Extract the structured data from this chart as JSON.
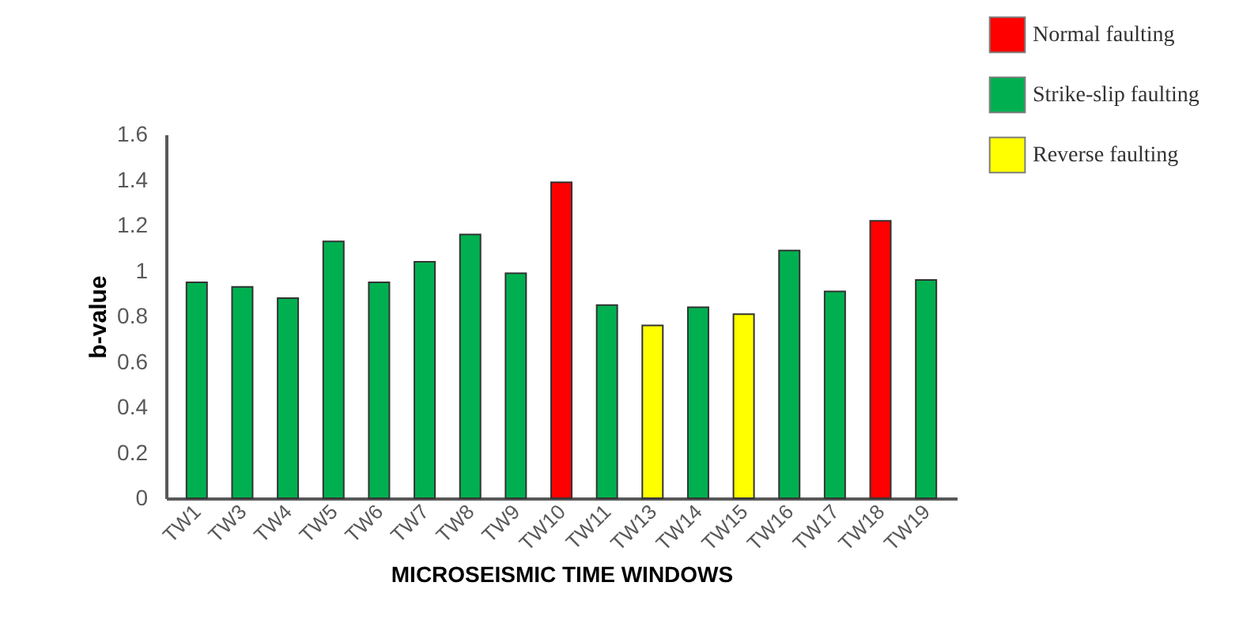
{
  "chart_data": {
    "type": "bar",
    "categories": [
      "TW1",
      "TW3",
      "TW4",
      "TW5",
      "TW6",
      "TW7",
      "TW8",
      "TW9",
      "TW10",
      "TW11",
      "TW13",
      "TW14",
      "TW15",
      "TW16",
      "TW17",
      "TW18",
      "TW19"
    ],
    "series": [
      {
        "name": "Normal faulting",
        "color": "#ff0000",
        "values": [
          null,
          null,
          null,
          null,
          null,
          null,
          null,
          null,
          1.39,
          null,
          null,
          null,
          null,
          null,
          null,
          1.22,
          null
        ]
      },
      {
        "name": "Strike-slip faulting",
        "color": "#00b050",
        "values": [
          0.95,
          0.93,
          0.88,
          1.13,
          0.95,
          1.04,
          1.16,
          0.99,
          null,
          0.85,
          null,
          0.84,
          null,
          1.09,
          0.91,
          null,
          0.96
        ]
      },
      {
        "name": "Reverse faulting",
        "color": "#ffff00",
        "values": [
          null,
          null,
          null,
          null,
          null,
          null,
          null,
          null,
          null,
          null,
          0.76,
          null,
          0.81,
          null,
          null,
          null,
          null
        ]
      }
    ],
    "xlabel": "MICROSEISMIC TIME WINDOWS",
    "ylabel": "b-value",
    "ylim": [
      0,
      1.6
    ],
    "yticks": [
      0,
      0.2,
      0.4,
      0.6,
      0.8,
      1,
      1.2,
      1.4,
      1.6
    ],
    "grid": false,
    "legend": "top right"
  }
}
